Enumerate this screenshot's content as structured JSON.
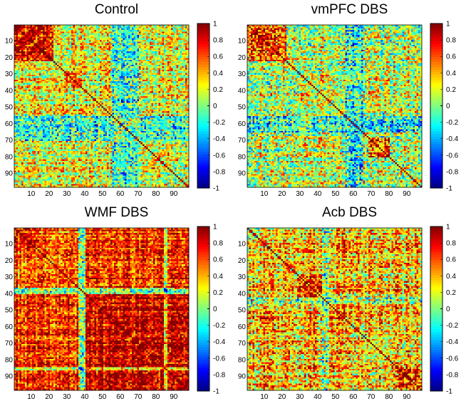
{
  "chart_data": [
    {
      "type": "heatmap",
      "title": "Control",
      "matrix_size": 98,
      "pattern": "control",
      "xticks": [
        10,
        20,
        30,
        40,
        50,
        60,
        70,
        80,
        90
      ],
      "yticks": [
        10,
        20,
        30,
        40,
        50,
        60,
        70,
        80,
        90
      ],
      "clim": [
        -1,
        1
      ],
      "colormap": "jet",
      "colorbar_ticks": [
        1,
        0.8,
        0.6,
        0.4,
        0.2,
        0,
        -0.2,
        -0.4,
        -0.6,
        -0.8,
        -1
      ]
    },
    {
      "type": "heatmap",
      "title": "vmPFC DBS",
      "matrix_size": 98,
      "pattern": "vmpfc",
      "xticks": [
        10,
        20,
        30,
        40,
        50,
        60,
        70,
        80,
        90
      ],
      "yticks": [
        10,
        20,
        30,
        40,
        50,
        60,
        70,
        80,
        90
      ],
      "clim": [
        -1,
        1
      ],
      "colormap": "jet",
      "colorbar_ticks": [
        1,
        0.8,
        0.6,
        0.4,
        0.2,
        0,
        -0.2,
        -0.4,
        -0.6,
        -0.8,
        -1
      ]
    },
    {
      "type": "heatmap",
      "title": "WMF DBS",
      "matrix_size": 98,
      "pattern": "wmf",
      "xticks": [
        10,
        20,
        30,
        40,
        50,
        60,
        70,
        80,
        90
      ],
      "yticks": [
        10,
        20,
        30,
        40,
        50,
        60,
        70,
        80,
        90
      ],
      "clim": [
        -1,
        1
      ],
      "colormap": "jet",
      "colorbar_ticks": [
        1,
        0.8,
        0.6,
        0.4,
        0.2,
        0,
        -0.2,
        -0.4,
        -0.6,
        -0.8,
        -1
      ]
    },
    {
      "type": "heatmap",
      "title": "Acb DBS",
      "matrix_size": 98,
      "pattern": "acb",
      "xticks": [
        10,
        20,
        30,
        40,
        50,
        60,
        70,
        80,
        90
      ],
      "yticks": [
        10,
        20,
        30,
        40,
        50,
        60,
        70,
        80,
        90
      ],
      "clim": [
        -1,
        1
      ],
      "colormap": "jet",
      "colorbar_ticks": [
        1,
        0.8,
        0.6,
        0.4,
        0.2,
        0,
        -0.2,
        -0.4,
        -0.6,
        -0.8,
        -1
      ]
    }
  ]
}
